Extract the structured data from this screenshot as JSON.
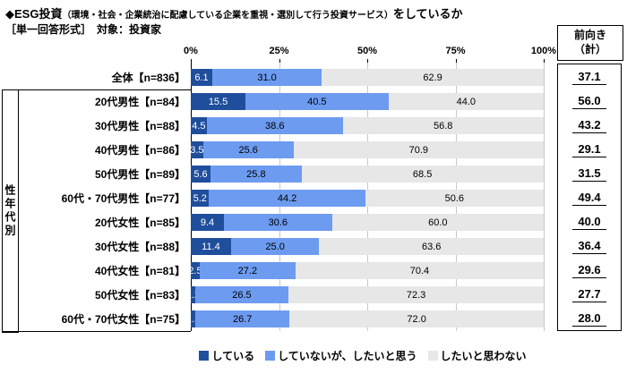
{
  "header": {
    "title_main": "◆ESG投資",
    "title_paren": "（環境・社会・企業統治に配慮している企業を重視・選別して行う投資サービス）",
    "title_tail": "をしているか",
    "subtitle": "［単一回答形式］　対象：投資家"
  },
  "group_label": "性年代別",
  "right_header": "前向き\n（計）",
  "axis_ticks": [
    "0%",
    "25%",
    "50%",
    "75%",
    "100%"
  ],
  "colors": {
    "doing": "#1F4E9C",
    "want": "#6D9BF0",
    "no": "#E7E7E7"
  },
  "legend": {
    "items": [
      {
        "label": "している"
      },
      {
        "label": "していないが、したいと思う"
      },
      {
        "label": "したいと思わない"
      }
    ]
  },
  "rows": [
    {
      "label": "全体【n=836】",
      "v1": "6.1",
      "v2": "31.0",
      "v3": "62.9",
      "total": "37.1"
    },
    {
      "label": "20代男性【n=84】",
      "v1": "15.5",
      "v2": "40.5",
      "v3": "44.0",
      "total": "56.0"
    },
    {
      "label": "30代男性【n=88】",
      "v1": "4.5",
      "v2": "38.6",
      "v3": "56.8",
      "total": "43.2"
    },
    {
      "label": "40代男性【n=86】",
      "v1": "3.5",
      "v2": "25.6",
      "v3": "70.9",
      "total": "29.1"
    },
    {
      "label": "50代男性【n=89】",
      "v1": "5.6",
      "v2": "25.8",
      "v3": "68.5",
      "total": "31.5"
    },
    {
      "label": "60代・70代男性【n=77】",
      "v1": "5.2",
      "v2": "44.2",
      "v3": "50.6",
      "total": "49.4"
    },
    {
      "label": "20代女性【n=85】",
      "v1": "9.4",
      "v2": "30.6",
      "v3": "60.0",
      "total": "40.0"
    },
    {
      "label": "30代女性【n=88】",
      "v1": "11.4",
      "v2": "25.0",
      "v3": "63.6",
      "total": "36.4"
    },
    {
      "label": "40代女性【n=81】",
      "v1": "2.5",
      "v2": "27.2",
      "v3": "70.4",
      "total": "29.6"
    },
    {
      "label": "50代女性【n=83】",
      "v1": "1.2",
      "v2": "26.5",
      "v3": "72.3",
      "total": "27.7"
    },
    {
      "label": "60代・70代女性【n=75】",
      "v1": "1.3",
      "v2": "26.7",
      "v3": "72.0",
      "total": "28.0"
    }
  ],
  "chart_data": {
    "type": "bar",
    "stacked": true,
    "orientation": "horizontal",
    "title": "ESG投資（環境・社会・企業統治に配慮している企業を重視・選別して行う投資サービス）をしているか",
    "subtitle": "［単一回答形式］　対象：投資家",
    "categories": [
      "全体【n=836】",
      "20代男性【n=84】",
      "30代男性【n=88】",
      "40代男性【n=86】",
      "50代男性【n=89】",
      "60代・70代男性【n=77】",
      "20代女性【n=85】",
      "30代女性【n=88】",
      "40代女性【n=81】",
      "50代女性【n=83】",
      "60代・70代女性【n=75】"
    ],
    "series": [
      {
        "name": "している",
        "color": "#1F4E9C",
        "values": [
          6.1,
          15.5,
          4.5,
          3.5,
          5.6,
          5.2,
          9.4,
          11.4,
          2.5,
          1.2,
          1.3
        ]
      },
      {
        "name": "していないが、したいと思う",
        "color": "#6D9BF0",
        "values": [
          31.0,
          40.5,
          38.6,
          25.6,
          25.8,
          44.2,
          30.6,
          25.0,
          27.2,
          26.5,
          26.7
        ]
      },
      {
        "name": "したいと思わない",
        "color": "#E7E7E7",
        "values": [
          62.9,
          44.0,
          56.8,
          70.9,
          68.5,
          50.6,
          60.0,
          63.6,
          70.4,
          72.3,
          72.0
        ]
      }
    ],
    "forward_totals": {
      "label": "前向き（計）",
      "values": [
        37.1,
        56.0,
        43.2,
        29.1,
        31.5,
        49.4,
        40.0,
        36.4,
        29.6,
        27.7,
        28.0
      ]
    },
    "xlim": [
      0,
      100
    ],
    "x_ticks": [
      "0%",
      "25%",
      "50%",
      "75%",
      "100%"
    ],
    "grid": true,
    "legend_position": "bottom"
  }
}
